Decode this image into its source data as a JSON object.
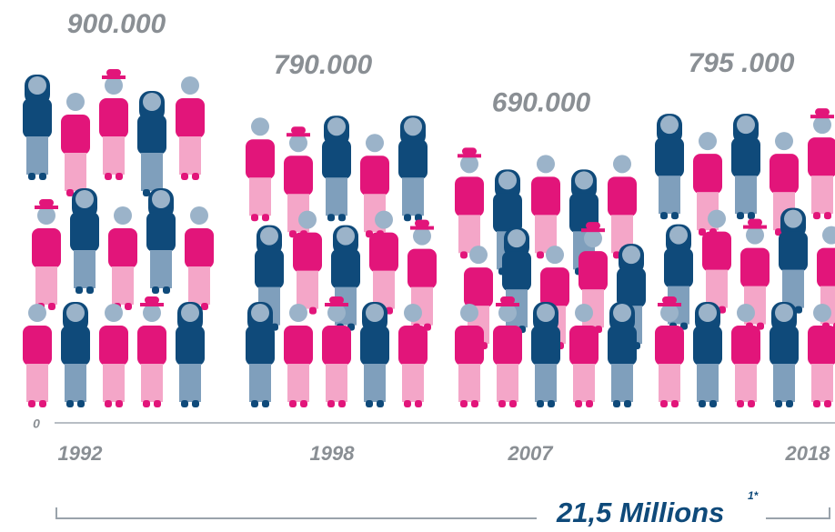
{
  "chart_data": {
    "type": "pictograph",
    "categories": [
      "1992",
      "1998",
      "2007",
      "2018"
    ],
    "values": [
      900000,
      790000,
      690000,
      795000
    ],
    "value_labels": [
      "900.000",
      "790.000",
      "690.000",
      "795 .000"
    ],
    "ylim": [
      0,
      900000
    ],
    "yticks": [
      0
    ],
    "total_label": "21,5 Millions",
    "total_note": "1*"
  }
}
